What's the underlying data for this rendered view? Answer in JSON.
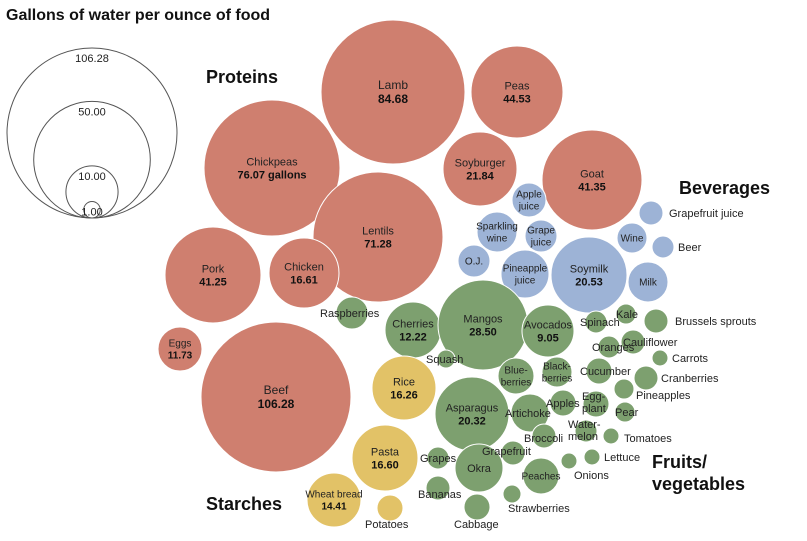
{
  "chart_data": {
    "type": "bubble",
    "title": "Gallons of water per ounce of food",
    "groups": [
      {
        "key": "proteins",
        "name": "Proteins",
        "color": "#CF7F6F"
      },
      {
        "key": "beverages",
        "name": "Beverages",
        "color": "#9DB3D6"
      },
      {
        "key": "fruits",
        "name": "Fruits/\nvegetables",
        "color": "#7DA06F"
      },
      {
        "key": "starches",
        "name": "Starches",
        "color": "#E2C267"
      }
    ],
    "legend": {
      "values": [
        106.28,
        50.0,
        10.0,
        1.0
      ],
      "labels": [
        "106.28",
        "50.00",
        "10.00",
        "1.00"
      ]
    },
    "items": [
      {
        "name": "Lamb",
        "value_label": "84.68",
        "group": "proteins"
      },
      {
        "name": "Peas",
        "value_label": "44.53",
        "group": "proteins"
      },
      {
        "name": "Chickpeas",
        "value_label": "76.07 gallons",
        "group": "proteins"
      },
      {
        "name": "Soyburger",
        "value_label": "21.84",
        "group": "proteins"
      },
      {
        "name": "Goat",
        "value_label": "41.35",
        "group": "proteins"
      },
      {
        "name": "Lentils",
        "value_label": "71.28",
        "group": "proteins"
      },
      {
        "name": "Pork",
        "value_label": "41.25",
        "group": "proteins"
      },
      {
        "name": "Chicken",
        "value_label": "16.61",
        "group": "proteins"
      },
      {
        "name": "Eggs",
        "value_label": "11.73",
        "group": "proteins"
      },
      {
        "name": "Beef",
        "value_label": "106.28",
        "group": "proteins"
      },
      {
        "name": "Apple\njuice",
        "value_label": "",
        "group": "beverages"
      },
      {
        "name": "Sparkling\nwine",
        "value_label": "",
        "group": "beverages"
      },
      {
        "name": "Grape\njuice",
        "value_label": "",
        "group": "beverages"
      },
      {
        "name": "O.J.",
        "value_label": "",
        "group": "beverages"
      },
      {
        "name": "Pineapple\njuice",
        "value_label": "",
        "group": "beverages"
      },
      {
        "name": "Soymilk",
        "value_label": "20.53",
        "group": "beverages"
      },
      {
        "name": "Wine",
        "value_label": "",
        "group": "beverages"
      },
      {
        "name": "Milk",
        "value_label": "",
        "group": "beverages"
      },
      {
        "name": "Grapefruit juice",
        "value_label": "",
        "group": "beverages"
      },
      {
        "name": "Beer",
        "value_label": "",
        "group": "beverages"
      },
      {
        "name": "Raspberries",
        "value_label": "",
        "group": "fruits"
      },
      {
        "name": "Cherries",
        "value_label": "12.22",
        "group": "fruits"
      },
      {
        "name": "Mangos",
        "value_label": "28.50",
        "group": "fruits"
      },
      {
        "name": "Avocados",
        "value_label": "9.05",
        "group": "fruits"
      },
      {
        "name": "Squash",
        "value_label": "",
        "group": "fruits"
      },
      {
        "name": "Blue-\nberries",
        "value_label": "",
        "group": "fruits"
      },
      {
        "name": "Black-\nberries",
        "value_label": "",
        "group": "fruits"
      },
      {
        "name": "Asparagus",
        "value_label": "20.32",
        "group": "fruits"
      },
      {
        "name": "Artichoke",
        "value_label": "",
        "group": "fruits"
      },
      {
        "name": "Apples",
        "value_label": "",
        "group": "fruits"
      },
      {
        "name": "Egg-\nplant",
        "value_label": "",
        "group": "fruits"
      },
      {
        "name": "Spinach",
        "value_label": "",
        "group": "fruits"
      },
      {
        "name": "Kale",
        "value_label": "",
        "group": "fruits"
      },
      {
        "name": "Brussels sprouts",
        "value_label": "",
        "group": "fruits"
      },
      {
        "name": "Oranges",
        "value_label": "",
        "group": "fruits"
      },
      {
        "name": "Cauliflower",
        "value_label": "",
        "group": "fruits"
      },
      {
        "name": "Carrots",
        "value_label": "",
        "group": "fruits"
      },
      {
        "name": "Cucumber",
        "value_label": "",
        "group": "fruits"
      },
      {
        "name": "Cranberries",
        "value_label": "",
        "group": "fruits"
      },
      {
        "name": "Pineapples",
        "value_label": "",
        "group": "fruits"
      },
      {
        "name": "Pear",
        "value_label": "",
        "group": "fruits"
      },
      {
        "name": "Water-\nmelon",
        "value_label": "",
        "group": "fruits"
      },
      {
        "name": "Tomatoes",
        "value_label": "",
        "group": "fruits"
      },
      {
        "name": "Broccoli",
        "value_label": "",
        "group": "fruits"
      },
      {
        "name": "Grapefruit",
        "value_label": "",
        "group": "fruits"
      },
      {
        "name": "Lettuce",
        "value_label": "",
        "group": "fruits"
      },
      {
        "name": "Grapes",
        "value_label": "",
        "group": "fruits"
      },
      {
        "name": "Okra",
        "value_label": "",
        "group": "fruits"
      },
      {
        "name": "Peaches",
        "value_label": "",
        "group": "fruits"
      },
      {
        "name": "Onions",
        "value_label": "",
        "group": "fruits"
      },
      {
        "name": "Bananas",
        "value_label": "",
        "group": "fruits"
      },
      {
        "name": "Strawberries",
        "value_label": "",
        "group": "fruits"
      },
      {
        "name": "Cabbage",
        "value_label": "",
        "group": "fruits"
      },
      {
        "name": "Rice",
        "value_label": "16.26",
        "group": "starches"
      },
      {
        "name": "Pasta",
        "value_label": "16.60",
        "group": "starches"
      },
      {
        "name": "Wheat bread",
        "value_label": "14.41",
        "group": "starches"
      },
      {
        "name": "Potatoes",
        "value_label": "",
        "group": "starches"
      }
    ]
  }
}
